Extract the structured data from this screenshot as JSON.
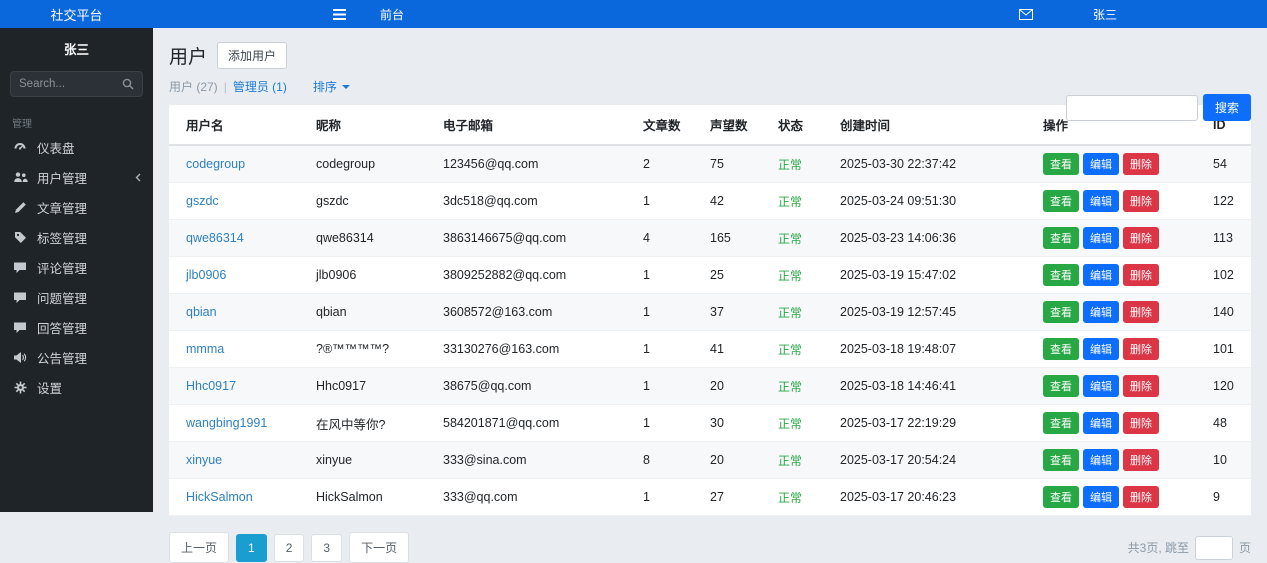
{
  "topbar": {
    "brand": "社交平台",
    "nav_frontend": "前台",
    "user": "张三"
  },
  "sidebar": {
    "user": "张三",
    "search_placeholder": "Search...",
    "section_label": "管理",
    "items": [
      {
        "label": "仪表盘",
        "icon": "gauge-icon"
      },
      {
        "label": "用户管理",
        "icon": "users-icon"
      },
      {
        "label": "文章管理",
        "icon": "pen-icon"
      },
      {
        "label": "标签管理",
        "icon": "tag-icon"
      },
      {
        "label": "评论管理",
        "icon": "comment-icon"
      },
      {
        "label": "问题管理",
        "icon": "comment-icon"
      },
      {
        "label": "回答管理",
        "icon": "comment-icon"
      },
      {
        "label": "公告管理",
        "icon": "speaker-icon"
      },
      {
        "label": "设置",
        "icon": "gear-icon"
      }
    ]
  },
  "main": {
    "title": "用户",
    "add_user_button": "添加用户",
    "filters": {
      "users_count": "用户 (27)",
      "separator": "|",
      "admins_count": "管理员 (1)",
      "sort_label": "排序"
    },
    "search": {
      "value": "",
      "button": "搜索"
    }
  },
  "table": {
    "columns": [
      "用户名",
      "昵称",
      "电子邮箱",
      "文章数",
      "声望数",
      "状态",
      "创建时间",
      "操作",
      "ID"
    ],
    "action_labels": [
      "查看",
      "编辑",
      "删除"
    ],
    "rows": [
      {
        "username": "codegroup",
        "nickname": "codegroup",
        "email": "123456@qq.com",
        "articles": "2",
        "reputation": "75",
        "status": "正常",
        "created": "2025-03-30 22:37:42",
        "id": "54"
      },
      {
        "username": "gszdc",
        "nickname": "gszdc",
        "email": "3dc518@qq.com",
        "articles": "1",
        "reputation": "42",
        "status": "正常",
        "created": "2025-03-24 09:51:30",
        "id": "122"
      },
      {
        "username": "qwe86314",
        "nickname": "qwe86314",
        "email": "3863146675@qq.com",
        "articles": "4",
        "reputation": "165",
        "status": "正常",
        "created": "2025-03-23 14:06:36",
        "id": "113"
      },
      {
        "username": "jlb0906",
        "nickname": "jlb0906",
        "email": "3809252882@qq.com",
        "articles": "1",
        "reputation": "25",
        "status": "正常",
        "created": "2025-03-19 15:47:02",
        "id": "102"
      },
      {
        "username": "qbian",
        "nickname": "qbian",
        "email": "3608572@163.com",
        "articles": "1",
        "reputation": "37",
        "status": "正常",
        "created": "2025-03-19 12:57:45",
        "id": "140"
      },
      {
        "username": "mmma",
        "nickname": "?®™™™™?",
        "email": "33130276@163.com",
        "articles": "1",
        "reputation": "41",
        "status": "正常",
        "created": "2025-03-18 19:48:07",
        "id": "101"
      },
      {
        "username": "Hhc0917",
        "nickname": "Hhc0917",
        "email": "38675@qq.com",
        "articles": "1",
        "reputation": "20",
        "status": "正常",
        "created": "2025-03-18 14:46:41",
        "id": "120"
      },
      {
        "username": "wangbing1991",
        "nickname": "在风中等你?",
        "email": "584201871@qq.com",
        "articles": "1",
        "reputation": "30",
        "status": "正常",
        "created": "2025-03-17 22:19:29",
        "id": "48"
      },
      {
        "username": "xinyue",
        "nickname": "xinyue",
        "email": "333@sina.com",
        "articles": "8",
        "reputation": "20",
        "status": "正常",
        "created": "2025-03-17 20:54:24",
        "id": "10"
      },
      {
        "username": "HickSalmon",
        "nickname": "HickSalmon",
        "email": "333@qq.com",
        "articles": "1",
        "reputation": "27",
        "status": "正常",
        "created": "2025-03-17 20:46:23",
        "id": "9"
      }
    ]
  },
  "pagination": {
    "prev": "上一页",
    "pages": [
      "1",
      "2",
      "3"
    ],
    "active": "1",
    "next": "下一页",
    "total_text": "共3页, 跳至",
    "page_suffix": "页",
    "jump_value": ""
  },
  "colors": {
    "topbar": "#0b68dc",
    "sidebar": "#1f2428",
    "primary_button": "#0d6efd",
    "view_button": "#28a745",
    "edit_button": "#0d6efd",
    "delete_button": "#dc3545",
    "status_ok": "#28a745",
    "active_page": "#1a9ed1",
    "link": "#2f80c0"
  }
}
